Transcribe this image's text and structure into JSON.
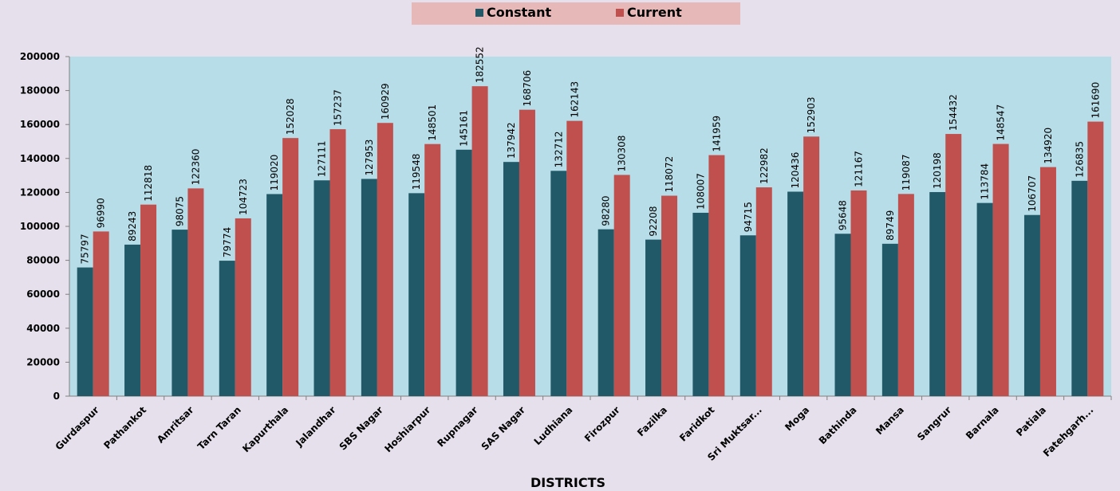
{
  "chart_data": {
    "type": "bar",
    "x_label": "DISTRICTS",
    "categories": [
      "Gurdaspur",
      "Pathankot",
      "Amritsar",
      "Tarn Taran",
      "Kapurthala",
      "Jalandhar",
      "SBS Nagar",
      "Hoshiarpur",
      "Rupnagar",
      "SAS Nagar",
      "Ludhiana",
      "Firozpur",
      "Fazilka",
      "Faridkot",
      "Sri Muktsar...",
      "Moga",
      "Bathinda",
      "Mansa",
      "Sangrur",
      "Barnala",
      "Patiala",
      "Fatehgarh..."
    ],
    "series": [
      {
        "name": "Constant",
        "color": "#215968",
        "values": [
          75797,
          89243,
          98075,
          79774,
          119020,
          127111,
          127953,
          119548,
          145161,
          137942,
          132712,
          98280,
          92208,
          108007,
          94715,
          120436,
          95648,
          89749,
          120198,
          113784,
          106707,
          126835
        ]
      },
      {
        "name": "Current",
        "color": "#c0504d",
        "values": [
          96990,
          112818,
          122360,
          104723,
          152028,
          157237,
          160929,
          148501,
          182552,
          168706,
          162143,
          130308,
          118072,
          141959,
          122982,
          152903,
          121167,
          119087,
          154432,
          148547,
          134920,
          161690
        ]
      }
    ],
    "ylim": [
      0,
      200000
    ],
    "yticks": [
      0,
      20000,
      40000,
      60000,
      80000,
      100000,
      120000,
      140000,
      160000,
      180000,
      200000
    ],
    "legend": "top"
  }
}
